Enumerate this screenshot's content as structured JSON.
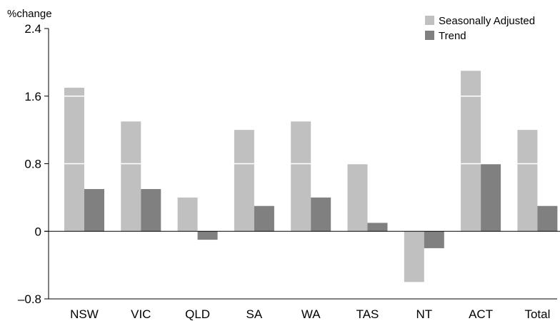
{
  "chart_data": {
    "type": "bar",
    "title": "",
    "xlabel": "",
    "ylabel": "%change",
    "ylim": [
      -0.8,
      2.4
    ],
    "yticks": [
      -0.8,
      0,
      0.8,
      1.6,
      2.4
    ],
    "ytick_labels": [
      "–0.8",
      "0",
      "0.8",
      "1.6",
      "2.4"
    ],
    "categories": [
      "NSW",
      "VIC",
      "QLD",
      "SA",
      "WA",
      "TAS",
      "NT",
      "ACT",
      "Total"
    ],
    "series": [
      {
        "name": "Seasonally Adjusted",
        "color": "#c0c0c0",
        "values": [
          1.7,
          1.3,
          0.4,
          1.2,
          1.3,
          0.8,
          -0.6,
          1.9,
          1.2
        ]
      },
      {
        "name": "Trend",
        "color": "#808080",
        "values": [
          0.5,
          0.5,
          -0.1,
          0.3,
          0.4,
          0.1,
          -0.2,
          0.8,
          0.3
        ]
      }
    ],
    "grid": "white lines drawn through bars at each y tick",
    "legend_position": "top-right"
  }
}
